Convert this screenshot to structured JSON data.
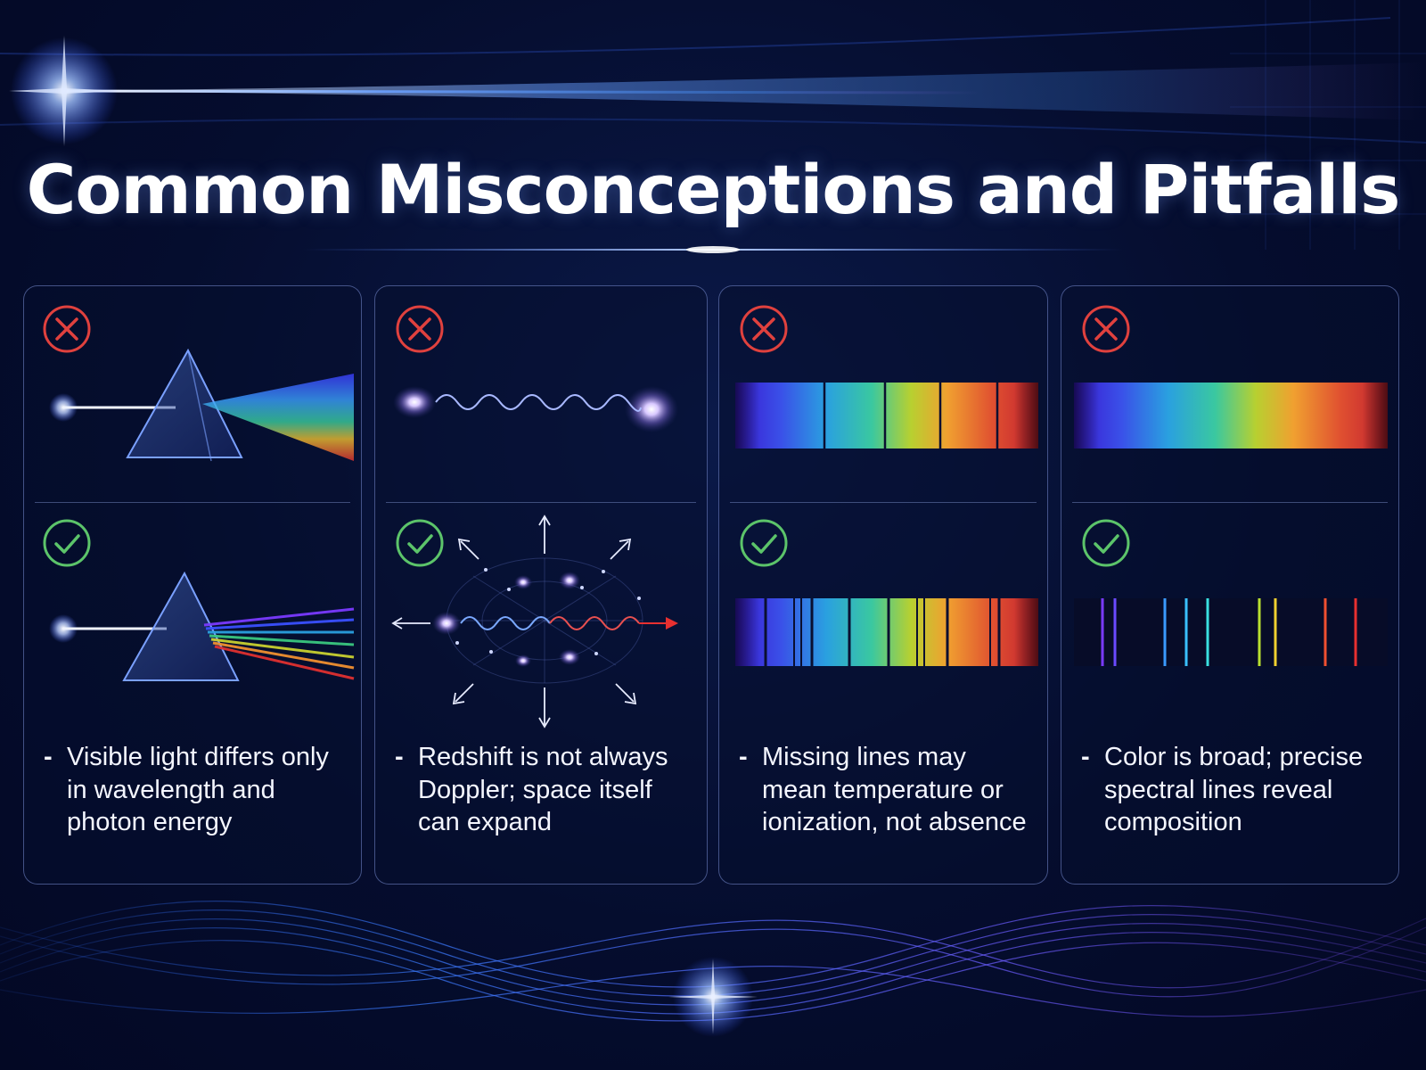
{
  "title": "Common Misconceptions and Pitfalls",
  "cards": [
    {
      "topic": "prism-dispersion",
      "wrong_label": "✕",
      "right_label": "✓",
      "note_dash": "-",
      "note": "Visible light differs only in wavelength and photon energy"
    },
    {
      "topic": "redshift",
      "wrong_label": "✕",
      "right_label": "✓",
      "note_dash": "-",
      "note": "Redshift is not always Doppler; space itself can expand"
    },
    {
      "topic": "absorption-lines",
      "wrong_label": "✕",
      "right_label": "✓",
      "note_dash": "-",
      "note": "Missing lines may mean temperature or ionization, not absence"
    },
    {
      "topic": "emission-lines",
      "wrong_label": "✕",
      "right_label": "✓",
      "note_dash": "-",
      "note": "Color is broad; precise spectral lines reveal composition"
    }
  ],
  "colors": {
    "wrong": "#e0413e",
    "right": "#5cc46a",
    "background": "#050d2e",
    "card_border": "#7884c8"
  }
}
